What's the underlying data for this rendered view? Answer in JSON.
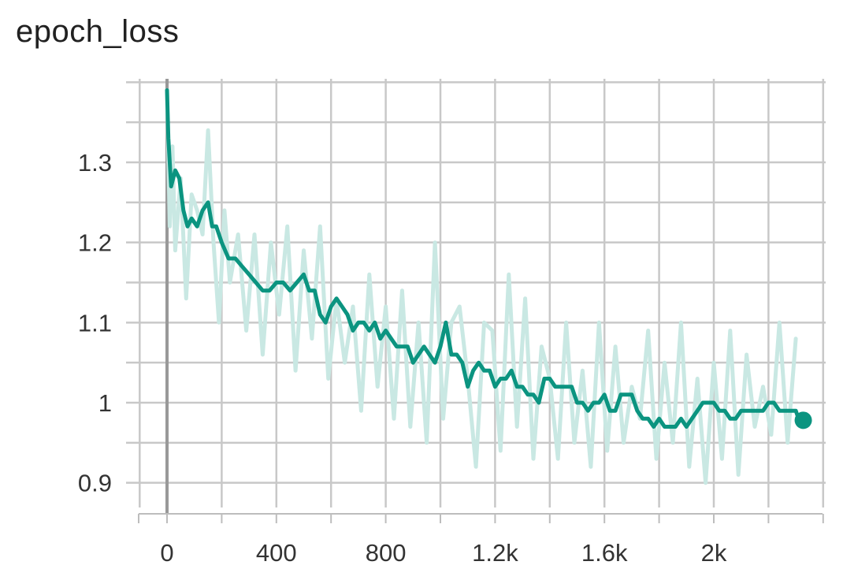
{
  "chart_data": {
    "type": "line",
    "title": "epoch_loss",
    "xlabel": "",
    "ylabel": "",
    "xlim": [
      -200,
      2400
    ],
    "ylim": [
      0.86,
      1.41
    ],
    "x_ticks": [
      0,
      400,
      800,
      1200,
      1600,
      2000
    ],
    "x_tick_labels": [
      "0",
      "400",
      "800",
      "1.2k",
      "1.6k",
      "2k"
    ],
    "y_ticks": [
      0.9,
      1.0,
      1.1,
      1.2,
      1.3
    ],
    "y_tick_labels": [
      "0.9",
      "1",
      "1.1",
      "1.2",
      "1.3"
    ],
    "grid": true,
    "series": [
      {
        "role": "raw",
        "color": "#c9e8e3",
        "x": [
          0,
          10,
          20,
          30,
          50,
          70,
          90,
          110,
          130,
          150,
          170,
          190,
          210,
          230,
          260,
          290,
          320,
          350,
          380,
          410,
          440,
          470,
          500,
          530,
          560,
          590,
          620,
          650,
          680,
          710,
          740,
          770,
          800,
          830,
          860,
          890,
          920,
          950,
          980,
          1010,
          1040,
          1070,
          1100,
          1130,
          1160,
          1190,
          1220,
          1250,
          1280,
          1310,
          1340,
          1370,
          1400,
          1430,
          1460,
          1490,
          1520,
          1550,
          1580,
          1610,
          1640,
          1670,
          1700,
          1730,
          1760,
          1790,
          1820,
          1850,
          1880,
          1910,
          1940,
          1970,
          2000,
          2030,
          2060,
          2090,
          2120,
          2150,
          2180,
          2210,
          2240,
          2270,
          2300
        ],
        "values": [
          1.39,
          1.22,
          1.32,
          1.19,
          1.28,
          1.13,
          1.26,
          1.24,
          1.21,
          1.34,
          1.2,
          1.1,
          1.24,
          1.15,
          1.21,
          1.09,
          1.21,
          1.06,
          1.2,
          1.11,
          1.22,
          1.04,
          1.19,
          1.08,
          1.22,
          1.03,
          1.13,
          1.05,
          1.12,
          0.99,
          1.16,
          1.02,
          1.12,
          0.98,
          1.14,
          0.97,
          1.1,
          0.95,
          1.2,
          0.98,
          1.1,
          1.12,
          1.03,
          0.92,
          1.1,
          1.09,
          0.94,
          1.16,
          0.97,
          1.13,
          0.93,
          1.07,
          1.03,
          0.93,
          1.1,
          0.95,
          1.04,
          0.92,
          1.1,
          0.94,
          1.07,
          0.95,
          1.02,
          0.98,
          1.09,
          0.93,
          1.05,
          0.95,
          1.1,
          0.92,
          1.03,
          0.9,
          1.05,
          0.93,
          1.09,
          0.91,
          1.06,
          0.97,
          1.02,
          0.96,
          1.1,
          0.95,
          1.08
        ]
      },
      {
        "role": "smoothed",
        "color": "#0b9480",
        "x": [
          0,
          5,
          15,
          30,
          45,
          60,
          75,
          90,
          110,
          130,
          150,
          165,
          180,
          200,
          225,
          250,
          275,
          300,
          325,
          350,
          375,
          400,
          425,
          450,
          475,
          500,
          520,
          540,
          560,
          580,
          600,
          620,
          640,
          660,
          680,
          700,
          720,
          740,
          760,
          780,
          800,
          820,
          840,
          860,
          880,
          900,
          920,
          940,
          960,
          980,
          1000,
          1020,
          1040,
          1060,
          1080,
          1100,
          1120,
          1140,
          1160,
          1180,
          1200,
          1220,
          1240,
          1260,
          1280,
          1300,
          1320,
          1340,
          1360,
          1380,
          1400,
          1420,
          1440,
          1460,
          1480,
          1500,
          1520,
          1540,
          1560,
          1580,
          1600,
          1620,
          1640,
          1660,
          1680,
          1700,
          1720,
          1740,
          1760,
          1780,
          1800,
          1820,
          1840,
          1860,
          1880,
          1900,
          1920,
          1940,
          1960,
          1980,
          2000,
          2020,
          2040,
          2060,
          2080,
          2100,
          2120,
          2140,
          2160,
          2180,
          2200,
          2220,
          2240,
          2260,
          2280,
          2300,
          2310
        ],
        "values": [
          1.39,
          1.33,
          1.27,
          1.29,
          1.28,
          1.24,
          1.22,
          1.23,
          1.22,
          1.24,
          1.25,
          1.22,
          1.22,
          1.2,
          1.18,
          1.18,
          1.17,
          1.16,
          1.15,
          1.14,
          1.14,
          1.15,
          1.15,
          1.14,
          1.15,
          1.16,
          1.14,
          1.14,
          1.11,
          1.1,
          1.12,
          1.13,
          1.12,
          1.11,
          1.09,
          1.1,
          1.1,
          1.09,
          1.1,
          1.08,
          1.09,
          1.08,
          1.07,
          1.07,
          1.07,
          1.05,
          1.06,
          1.07,
          1.06,
          1.05,
          1.07,
          1.1,
          1.06,
          1.06,
          1.05,
          1.02,
          1.04,
          1.05,
          1.04,
          1.04,
          1.02,
          1.03,
          1.03,
          1.04,
          1.02,
          1.02,
          1.01,
          1.01,
          1.0,
          1.03,
          1.03,
          1.02,
          1.02,
          1.02,
          1.02,
          1.0,
          1.0,
          0.99,
          1.0,
          1.0,
          1.01,
          0.99,
          0.99,
          1.01,
          1.01,
          1.01,
          0.99,
          0.98,
          0.98,
          0.97,
          0.98,
          0.97,
          0.97,
          0.97,
          0.98,
          0.97,
          0.98,
          0.99,
          1.0,
          1.0,
          1.0,
          0.99,
          0.99,
          0.98,
          0.98,
          0.99,
          0.99,
          0.99,
          0.99,
          0.99,
          1.0,
          1.0,
          0.99,
          0.99,
          0.99,
          0.99,
          0.98
        ]
      }
    ]
  }
}
